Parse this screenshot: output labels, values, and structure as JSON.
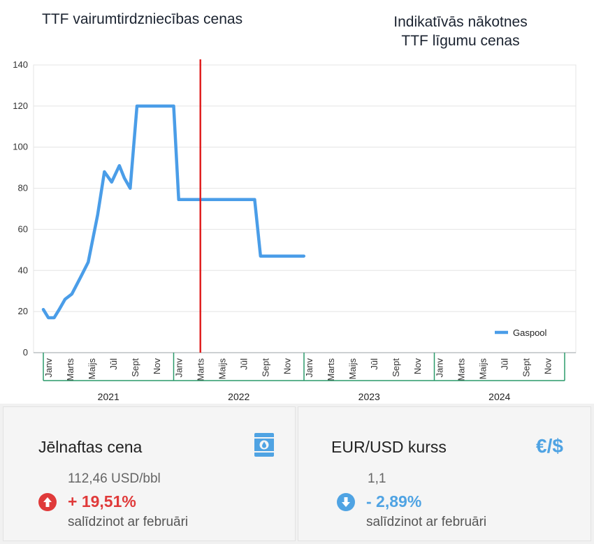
{
  "titles": {
    "left": "TTF vairumtirdzniecības cenas",
    "right_line1": "Indikatīvās nākotnes",
    "right_line2": "TTF līgumu cenas"
  },
  "chart_data": {
    "type": "line",
    "ylim": [
      0,
      140
    ],
    "yticks": [
      0,
      20,
      40,
      60,
      80,
      100,
      120,
      140
    ],
    "grid": true,
    "legend_position": "bottom-right",
    "x_start": "2021-01",
    "x_end": "2024-12",
    "month_tick_labels": [
      {
        "label": "Janv",
        "month": 1
      },
      {
        "label": "Marts",
        "month": 3
      },
      {
        "label": "Maijs",
        "month": 5
      },
      {
        "label": "Jūl",
        "month": 7
      },
      {
        "label": "Sept",
        "month": 9
      },
      {
        "label": "Nov",
        "month": 11
      }
    ],
    "years": [
      "2021",
      "2022",
      "2023",
      "2024"
    ],
    "vertical_marker": {
      "at": "2022-03-15",
      "color": "#e02020"
    },
    "series": [
      {
        "name": "Gaspool",
        "color": "#4a9de8",
        "points": [
          [
            "2021-01-01",
            21
          ],
          [
            "2021-01-15",
            17
          ],
          [
            "2021-02-01",
            17
          ],
          [
            "2021-02-15",
            21
          ],
          [
            "2021-03-01",
            26
          ],
          [
            "2021-03-20",
            28.5
          ],
          [
            "2021-04-15",
            37
          ],
          [
            "2021-05-05",
            44
          ],
          [
            "2021-06-01",
            67
          ],
          [
            "2021-06-20",
            88
          ],
          [
            "2021-07-10",
            83
          ],
          [
            "2021-08-01",
            91
          ],
          [
            "2021-08-15",
            85
          ],
          [
            "2021-09-01",
            80
          ],
          [
            "2021-09-20",
            120
          ],
          [
            "2022-01-01",
            120
          ],
          [
            "2022-01-15",
            74.5
          ],
          [
            "2022-08-15",
            74.5
          ],
          [
            "2022-09-01",
            47
          ],
          [
            "2022-12-31",
            47
          ]
        ]
      }
    ]
  },
  "cards": {
    "oil": {
      "title": "Jēlnaftas cena",
      "value": "112,46 USD/bbl",
      "change": "+ 19,51%",
      "note": "salīdzinot ar februāri",
      "icon": "oil-barrel-icon",
      "accent": "#e03a3a"
    },
    "fx": {
      "title": "EUR/USD kurss",
      "value": "1,1",
      "change": "- 2,89%",
      "note": "salīdzinot ar februāri",
      "icon_text": "€/$",
      "accent": "#4fa3e3"
    }
  }
}
